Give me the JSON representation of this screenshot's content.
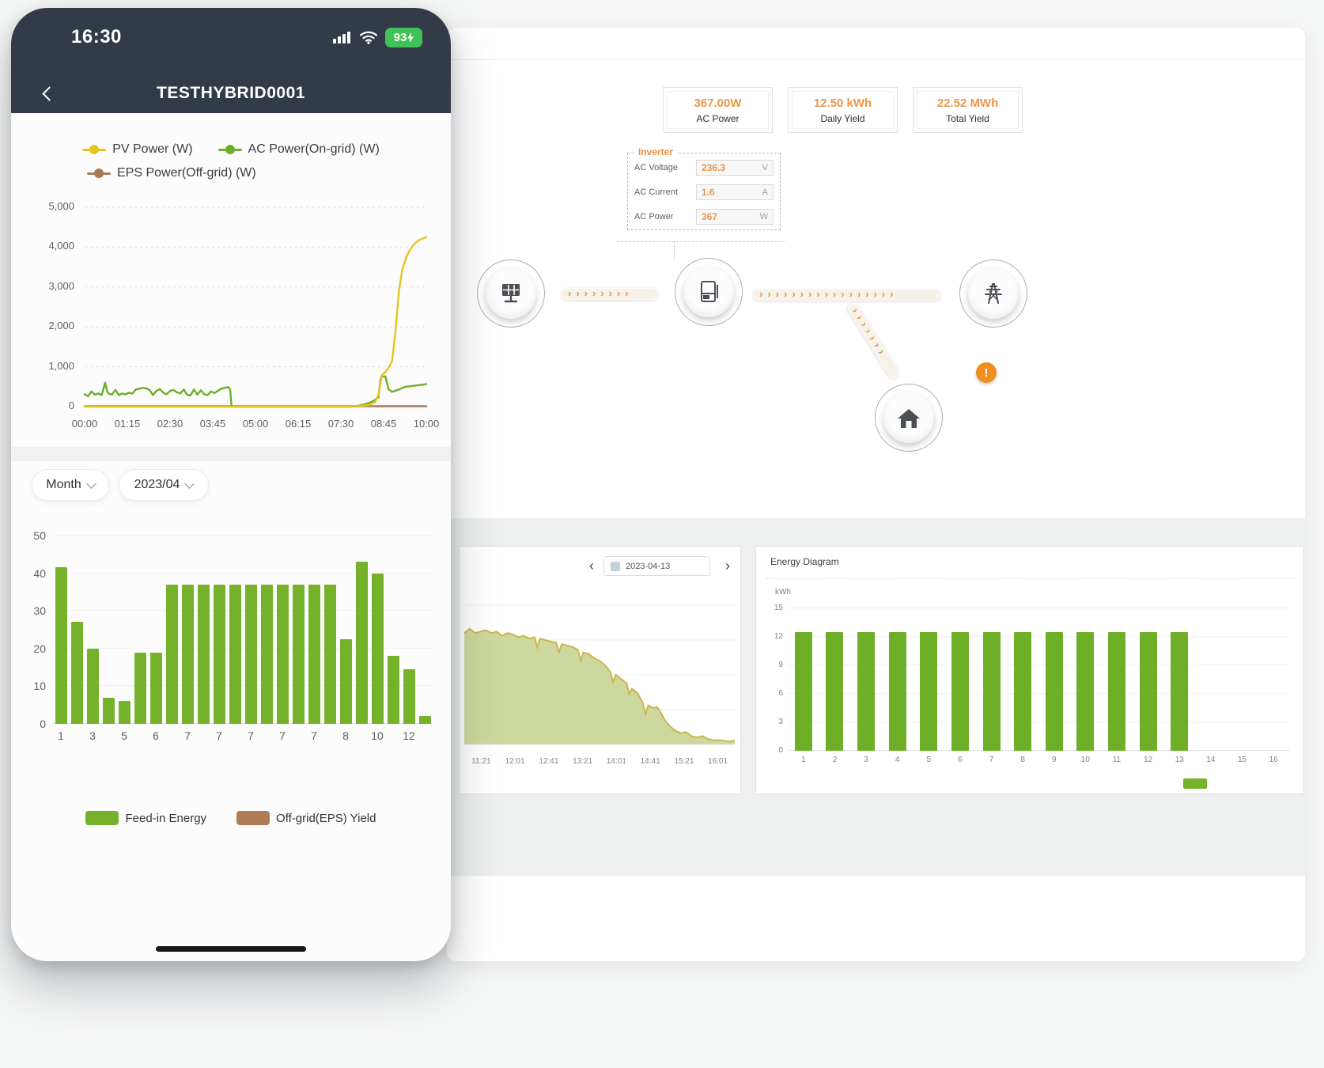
{
  "colors": {
    "green": "#76b12c",
    "green_dark": "#6fae27",
    "yellow": "#e4c41d",
    "brown": "#a97a57",
    "orange": "#e9974a",
    "navy": "#333a48",
    "warn": "#ef8f1d",
    "area_fill": "#cdd89e",
    "area_line": "#cdb64b"
  },
  "phone": {
    "status": {
      "time": "16:30",
      "battery_percent": "93"
    },
    "nav": {
      "title": "TESTHYBRID0001"
    },
    "controls": {
      "period": "Month",
      "month": "2023/04"
    }
  },
  "desktop": {
    "stats": [
      {
        "value": "367.00W",
        "label": "AC Power"
      },
      {
        "value": "12.50 kWh",
        "label": "Daily Yield"
      },
      {
        "value": "22.52 MWh",
        "label": "Total Yield"
      }
    ],
    "inverter_panel": {
      "title": "Inverter",
      "rows": [
        {
          "label": "AC Voltage",
          "value": "236.3",
          "unit": "V"
        },
        {
          "label": "AC Current",
          "value": "1.6",
          "unit": "A"
        },
        {
          "label": "AC Power",
          "value": "367",
          "unit": "W"
        }
      ]
    },
    "flow": {
      "warning": "!",
      "chevron": "›"
    },
    "daily_card": {
      "prev": "‹",
      "next": "›",
      "date": "2023-04-13"
    },
    "energy_card": {
      "title": "Energy Diagram",
      "unit": "kWh"
    }
  },
  "chart_data": [
    {
      "id": "phone-power-line",
      "type": "line",
      "ylim": [
        0,
        5000
      ],
      "y_ticks": [
        0,
        1000,
        2000,
        3000,
        4000,
        5000
      ],
      "y_tick_labels": [
        "0",
        "1,000",
        "2,000",
        "3,000",
        "4,000",
        "5,000"
      ],
      "x_ticks": [
        "00:00",
        "01:15",
        "02:30",
        "03:45",
        "05:00",
        "06:15",
        "07:30",
        "08:45",
        "10:00"
      ],
      "legend_position": "top",
      "grid": true,
      "series": [
        {
          "name": "PV Power (W)",
          "color": "#e4c41d",
          "points": [
            [
              0,
              0
            ],
            [
              78,
              0
            ],
            [
              81,
              15
            ],
            [
              83,
              40
            ],
            [
              85,
              110
            ],
            [
              86,
              300
            ],
            [
              87,
              790
            ],
            [
              88,
              870
            ],
            [
              89,
              980
            ],
            [
              90,
              1150
            ],
            [
              91,
              1900
            ],
            [
              92,
              2900
            ],
            [
              93,
              3450
            ],
            [
              94,
              3720
            ],
            [
              95,
              3900
            ],
            [
              96,
              4030
            ],
            [
              97,
              4120
            ],
            [
              98,
              4180
            ],
            [
              100,
              4250
            ]
          ]
        },
        {
          "name": "AC Power(On-grid) (W)",
          "color": "#6fae27",
          "points": [
            [
              0,
              310
            ],
            [
              1,
              260
            ],
            [
              2,
              380
            ],
            [
              3,
              300
            ],
            [
              4,
              330
            ],
            [
              5,
              290
            ],
            [
              6,
              600
            ],
            [
              6.6,
              380
            ],
            [
              7,
              330
            ],
            [
              8,
              300
            ],
            [
              9,
              420
            ],
            [
              10,
              290
            ],
            [
              11,
              330
            ],
            [
              12,
              310
            ],
            [
              13,
              350
            ],
            [
              14,
              330
            ],
            [
              15,
              430
            ],
            [
              16,
              450
            ],
            [
              17,
              470
            ],
            [
              18,
              460
            ],
            [
              19,
              420
            ],
            [
              20,
              290
            ],
            [
              21,
              390
            ],
            [
              22,
              440
            ],
            [
              23,
              350
            ],
            [
              24,
              310
            ],
            [
              25,
              390
            ],
            [
              26,
              420
            ],
            [
              27,
              360
            ],
            [
              28,
              330
            ],
            [
              29,
              430
            ],
            [
              30,
              300
            ],
            [
              31,
              280
            ],
            [
              32,
              430
            ],
            [
              33,
              300
            ],
            [
              34,
              410
            ],
            [
              35,
              310
            ],
            [
              36,
              290
            ],
            [
              37,
              380
            ],
            [
              38,
              340
            ],
            [
              40,
              450
            ],
            [
              41,
              470
            ],
            [
              42,
              490
            ],
            [
              42.6,
              430
            ],
            [
              43,
              0
            ],
            [
              78,
              0
            ],
            [
              80,
              20
            ],
            [
              82,
              60
            ],
            [
              84,
              120
            ],
            [
              85,
              170
            ],
            [
              86,
              230
            ],
            [
              86.6,
              690
            ],
            [
              87,
              750
            ],
            [
              88,
              760
            ],
            [
              89,
              430
            ],
            [
              90,
              370
            ],
            [
              91,
              400
            ],
            [
              92,
              430
            ],
            [
              93,
              470
            ],
            [
              94,
              500
            ],
            [
              96,
              520
            ],
            [
              98,
              540
            ],
            [
              100,
              565
            ]
          ]
        },
        {
          "name": "EPS Power(Off-grid) (W)",
          "color": "#a97a57",
          "points": [
            [
              0,
              10
            ],
            [
              100,
              10
            ]
          ]
        }
      ]
    },
    {
      "id": "phone-month-bars",
      "type": "bar",
      "ylim": [
        0,
        50
      ],
      "y_ticks": [
        0,
        10,
        20,
        30,
        40,
        50
      ],
      "values": [
        41.5,
        27,
        20,
        7,
        6,
        19,
        19,
        37,
        37,
        37,
        37,
        37,
        37,
        37,
        37,
        37,
        37,
        37,
        22.5,
        43,
        40,
        18,
        14.5,
        2
      ],
      "x_tick_labels": [
        "1",
        "3",
        "5",
        "6",
        "7",
        "7",
        "7",
        "7",
        "7",
        "8",
        "10",
        "12"
      ],
      "x_tick_every": 2,
      "legend": [
        {
          "name": "Feed-in Energy",
          "color": "#76b12c"
        },
        {
          "name": "Off-grid(EPS) Yield",
          "color": "#b07c55"
        }
      ]
    },
    {
      "id": "daily-area",
      "type": "area",
      "date": "2023-04-13",
      "x_ticks": [
        "11:21",
        "12:01",
        "12:41",
        "13:21",
        "14:01",
        "14:41",
        "15:21",
        "16:01"
      ],
      "ylim_relative": [
        0,
        100
      ],
      "points": [
        [
          0,
          80
        ],
        [
          2,
          83
        ],
        [
          4,
          80
        ],
        [
          6,
          81
        ],
        [
          8,
          82
        ],
        [
          10,
          80
        ],
        [
          12,
          81
        ],
        [
          14,
          78
        ],
        [
          16,
          80
        ],
        [
          18,
          79
        ],
        [
          20,
          77
        ],
        [
          22,
          78
        ],
        [
          24,
          76
        ],
        [
          26,
          77
        ],
        [
          27,
          70
        ],
        [
          28,
          76
        ],
        [
          30,
          75
        ],
        [
          32,
          74
        ],
        [
          34,
          73
        ],
        [
          35,
          66
        ],
        [
          36,
          72
        ],
        [
          38,
          71
        ],
        [
          40,
          70
        ],
        [
          42,
          68
        ],
        [
          43,
          60
        ],
        [
          44,
          66
        ],
        [
          46,
          65
        ],
        [
          48,
          62
        ],
        [
          50,
          60
        ],
        [
          52,
          57
        ],
        [
          54,
          52
        ],
        [
          55,
          45
        ],
        [
          56,
          50
        ],
        [
          58,
          47
        ],
        [
          60,
          44
        ],
        [
          61,
          36
        ],
        [
          62,
          40
        ],
        [
          64,
          37
        ],
        [
          66,
          30
        ],
        [
          67,
          22
        ],
        [
          68,
          28
        ],
        [
          70,
          26
        ],
        [
          71,
          27
        ],
        [
          72,
          25
        ],
        [
          74,
          18
        ],
        [
          76,
          13
        ],
        [
          78,
          10
        ],
        [
          80,
          8
        ],
        [
          82,
          9
        ],
        [
          84,
          6
        ],
        [
          86,
          5
        ],
        [
          88,
          6
        ],
        [
          90,
          4
        ],
        [
          92,
          3
        ],
        [
          95,
          3
        ],
        [
          98,
          2
        ],
        [
          100,
          3
        ]
      ]
    },
    {
      "id": "energy-bars",
      "type": "bar",
      "title": "Energy Diagram",
      "ylabel": "kWh",
      "ylim": [
        0,
        15
      ],
      "y_ticks": [
        0,
        3,
        6,
        9,
        12,
        15
      ],
      "categories": [
        "1",
        "2",
        "3",
        "4",
        "5",
        "6",
        "7",
        "8",
        "9",
        "10",
        "11",
        "12",
        "13",
        "14",
        "15",
        "16"
      ],
      "values": [
        12.5,
        12.5,
        12.5,
        12.5,
        12.5,
        12.5,
        12.5,
        12.5,
        12.5,
        12.5,
        12.5,
        12.5,
        12.5,
        null,
        null,
        null
      ],
      "bar_color": "#6fae27",
      "legend_swatch": "#76b12c"
    }
  ]
}
